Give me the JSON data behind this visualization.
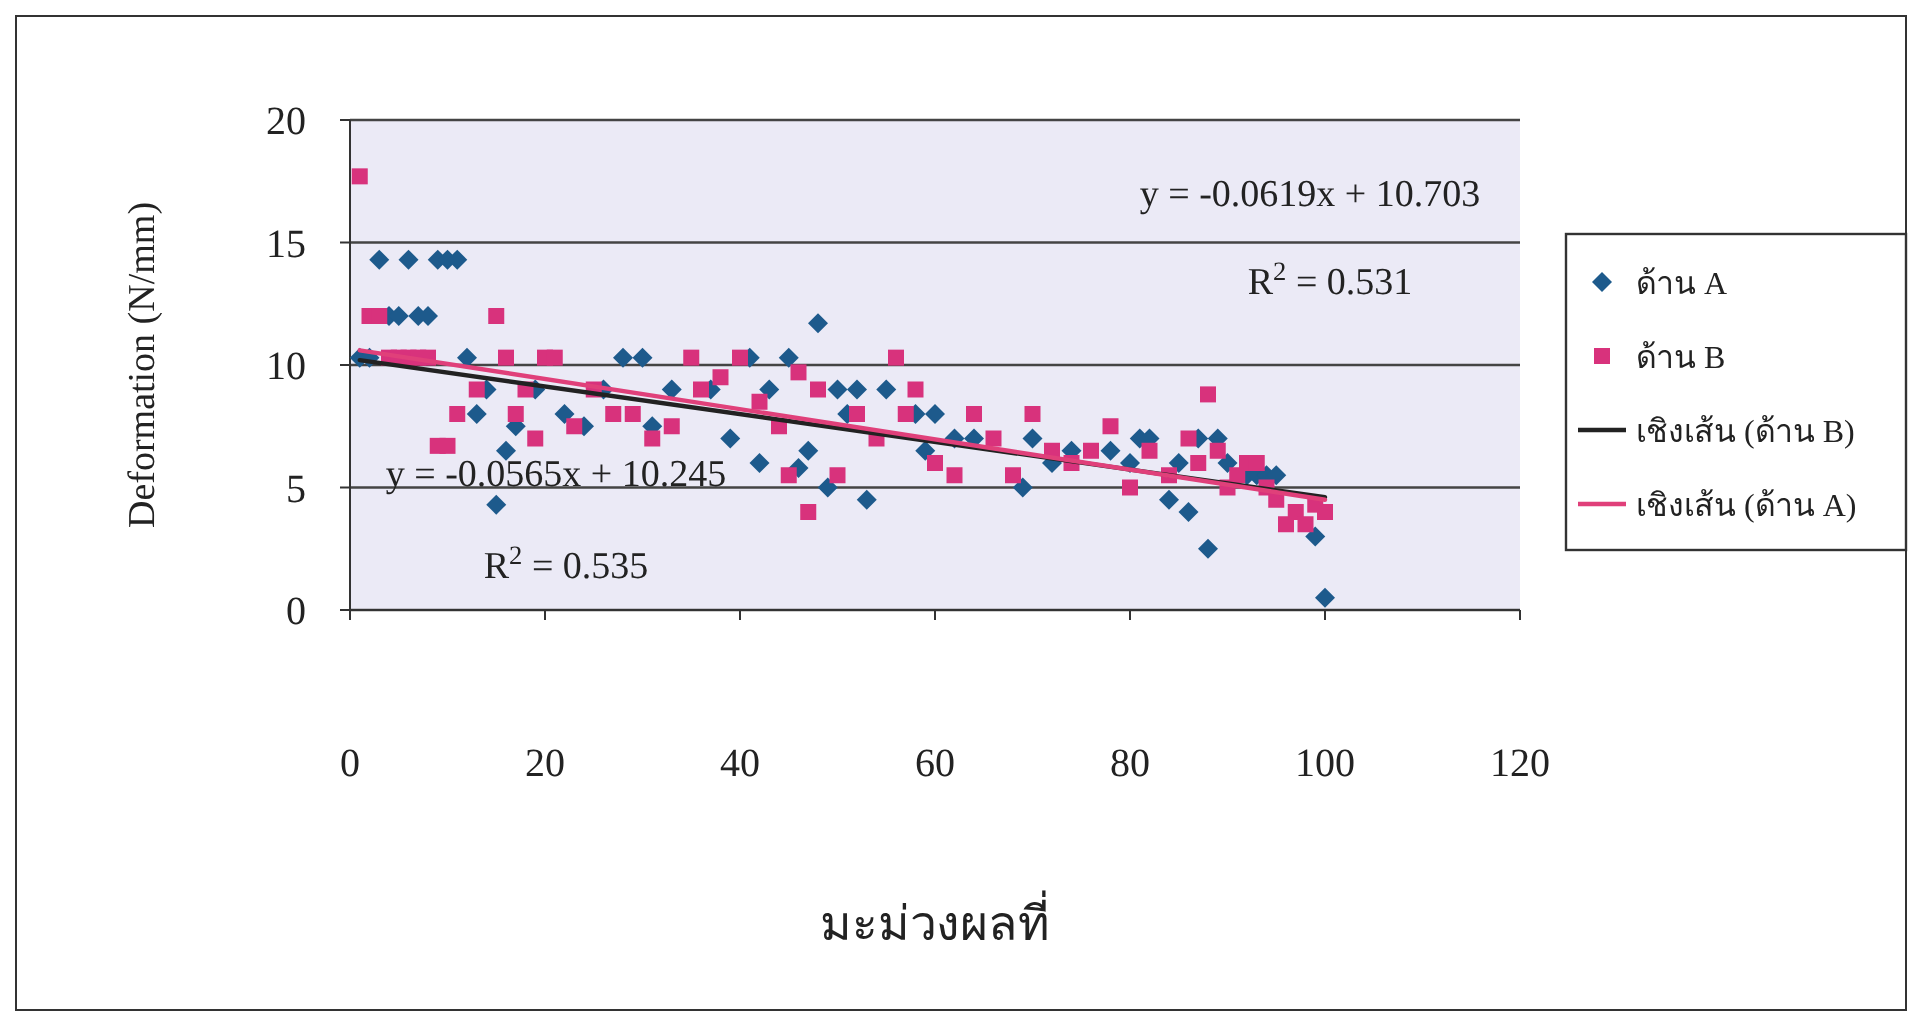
{
  "chart_data": {
    "type": "scatter",
    "xlabel": "มะม่วงผลที่",
    "ylabel": "Deformation (N/mm)",
    "xlim": [
      0,
      120
    ],
    "xticks": [
      0,
      20,
      40,
      60,
      80,
      100,
      120
    ],
    "ylim": [
      0,
      20
    ],
    "yticks": [
      0,
      5,
      10,
      15,
      20
    ],
    "grid": "y",
    "legend": "right",
    "annotations": [
      "y = -0.0619x + 10.703",
      "R$^{2}$ = 0.531",
      "y = -0.0565x + 10.245",
      "R$^{2}$ = 0.535"
    ],
    "series": [
      {
        "name": "ด้าน A",
        "color": "#1d5a8c",
        "marker": "diamond",
        "x": [
          1,
          2,
          3,
          4,
          5,
          6,
          7,
          8,
          9,
          10,
          11,
          12,
          13,
          14,
          15,
          16,
          17,
          19,
          22,
          24,
          26,
          28,
          30,
          31,
          33,
          37,
          39,
          41,
          42,
          43,
          45,
          46,
          47,
          48,
          49,
          50,
          51,
          52,
          53,
          55,
          58,
          59,
          60,
          62,
          64,
          69,
          70,
          72,
          74,
          78,
          80,
          81,
          82,
          84,
          85,
          86,
          87,
          88,
          89,
          90,
          92,
          93,
          94,
          95,
          99,
          100
        ],
        "values": [
          10.3,
          10.3,
          14.3,
          12,
          12,
          14.3,
          12,
          12,
          14.3,
          14.3,
          14.3,
          10.3,
          8,
          9,
          4.3,
          6.5,
          7.5,
          9,
          8,
          7.5,
          9,
          10.3,
          10.3,
          7.5,
          9,
          9,
          7,
          10.3,
          6,
          9,
          10.3,
          5.8,
          6.5,
          11.7,
          5,
          9,
          8,
          9,
          4.5,
          9,
          8,
          6.5,
          8,
          7,
          7,
          5,
          7,
          6,
          6.5,
          6.5,
          6,
          7,
          7,
          4.5,
          6,
          4,
          7,
          2.5,
          7,
          6,
          5.5,
          5.5,
          5.5,
          5.5,
          3,
          0.5
        ]
      },
      {
        "name": "ด้าน B",
        "color": "#d8327c",
        "marker": "square",
        "x": [
          1,
          2,
          3,
          4,
          5,
          6,
          7,
          8,
          9,
          10,
          11,
          13,
          15,
          16,
          17,
          18,
          19,
          20,
          21,
          23,
          25,
          27,
          29,
          31,
          33,
          35,
          36,
          38,
          40,
          42,
          44,
          45,
          46,
          47,
          48,
          50,
          52,
          54,
          56,
          57,
          58,
          60,
          62,
          64,
          66,
          68,
          70,
          72,
          74,
          76,
          78,
          80,
          82,
          84,
          86,
          87,
          88,
          89,
          90,
          91,
          92,
          93,
          94,
          95,
          96,
          97,
          98,
          99,
          100
        ],
        "values": [
          17.7,
          12,
          12,
          10.3,
          10.3,
          10.3,
          10.3,
          10.3,
          6.7,
          6.7,
          8,
          9,
          12,
          10.3,
          8,
          9,
          7,
          10.3,
          10.3,
          7.5,
          9,
          8,
          8,
          7,
          7.5,
          10.3,
          9,
          9.5,
          10.3,
          8.5,
          7.5,
          5.5,
          9.7,
          4,
          9,
          5.5,
          8,
          7,
          10.3,
          8,
          9,
          6,
          5.5,
          8,
          7,
          5.5,
          8,
          6.5,
          6,
          6.5,
          7.5,
          5,
          6.5,
          5.5,
          7,
          6,
          8.8,
          6.5,
          5,
          5.5,
          6,
          6,
          5,
          4.5,
          3.5,
          4,
          3.5,
          4.3,
          4
        ]
      },
      {
        "name": "เชิงเส้น (ด้าน B)",
        "type": "line",
        "color": "#222222",
        "x": [
          1,
          100
        ],
        "values": [
          10.2,
          4.6
        ]
      },
      {
        "name": "เชิงเส้น (ด้าน A)",
        "type": "line",
        "color": "#e0407a",
        "x": [
          1,
          100
        ],
        "values": [
          10.6,
          4.5
        ]
      }
    ]
  }
}
